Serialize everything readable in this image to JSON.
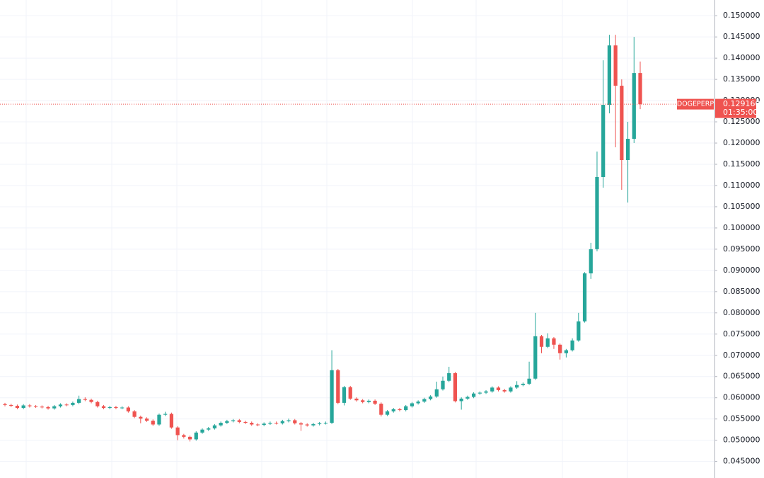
{
  "chart_data": {
    "type": "candlestick",
    "up_color": "#26a69a",
    "down_color": "#ef5350",
    "grid": true,
    "ylim": [
      0.0411,
      0.1537
    ],
    "yticks": [
      {
        "value": 0.045,
        "label": "0.045000"
      },
      {
        "value": 0.05,
        "label": "0.050000"
      },
      {
        "value": 0.055,
        "label": "0.055000"
      },
      {
        "value": 0.06,
        "label": "0.060000"
      },
      {
        "value": 0.065,
        "label": "0.065000"
      },
      {
        "value": 0.07,
        "label": "0.070000"
      },
      {
        "value": 0.075,
        "label": "0.075000"
      },
      {
        "value": 0.08,
        "label": "0.080000"
      },
      {
        "value": 0.085,
        "label": "0.085000"
      },
      {
        "value": 0.09,
        "label": "0.090000"
      },
      {
        "value": 0.095,
        "label": "0.095000"
      },
      {
        "value": 0.1,
        "label": "0.100000"
      },
      {
        "value": 0.105,
        "label": "0.105000"
      },
      {
        "value": 0.11,
        "label": "0.110000"
      },
      {
        "value": 0.115,
        "label": "0.115000"
      },
      {
        "value": 0.12,
        "label": "0.120000"
      },
      {
        "value": 0.125,
        "label": "0.125000"
      },
      {
        "value": 0.13,
        "label": "0.130000"
      },
      {
        "value": 0.135,
        "label": "0.135000"
      },
      {
        "value": 0.14,
        "label": "0.140000"
      },
      {
        "value": 0.145,
        "label": "0.145000"
      },
      {
        "value": 0.15,
        "label": "0.150000"
      }
    ],
    "last_price": {
      "name": "DOGEPERP",
      "value": 0.12916,
      "label": "0.129160",
      "countdown": "01:35:00"
    },
    "open": [
      0.0585,
      0.0583,
      0.0581,
      0.0576,
      0.0582,
      0.058,
      0.0579,
      0.0578,
      0.0575,
      0.058,
      0.0584,
      0.0583,
      0.0588,
      0.0597,
      0.0595,
      0.059,
      0.058,
      0.0576,
      0.0578,
      0.0576,
      0.0577,
      0.0568,
      0.0555,
      0.0551,
      0.0546,
      0.0537,
      0.056,
      0.0562,
      0.053,
      0.0512,
      0.0508,
      0.0502,
      0.0518,
      0.0525,
      0.0528,
      0.0535,
      0.0541,
      0.0545,
      0.0547,
      0.0543,
      0.0541,
      0.0537,
      0.0536,
      0.0539,
      0.0541,
      0.054,
      0.0545,
      0.0547,
      0.054,
      0.0537,
      0.0535,
      0.0538,
      0.054,
      0.0541,
      0.0665,
      0.0588,
      0.0625,
      0.0598,
      0.0594,
      0.059,
      0.0593,
      0.0586,
      0.056,
      0.0568,
      0.0573,
      0.0571,
      0.058,
      0.0587,
      0.0591,
      0.0597,
      0.0603,
      0.062,
      0.064,
      0.0658,
      0.0592,
      0.0598,
      0.0602,
      0.061,
      0.0612,
      0.0615,
      0.0624,
      0.0618,
      0.0615,
      0.0624,
      0.063,
      0.0633,
      0.0645,
      0.0745,
      0.072,
      0.074,
      0.0725,
      0.0705,
      0.0712,
      0.0735,
      0.078,
      0.0893,
      0.095,
      0.112,
      0.129,
      0.143,
      0.1335,
      0.116,
      0.121,
      0.1365
    ],
    "high": [
      0.0588,
      0.0586,
      0.0584,
      0.0585,
      0.0585,
      0.0583,
      0.0582,
      0.0581,
      0.0583,
      0.0587,
      0.0587,
      0.0591,
      0.0605,
      0.0601,
      0.0598,
      0.0593,
      0.0583,
      0.0581,
      0.0581,
      0.058,
      0.058,
      0.0571,
      0.0558,
      0.0554,
      0.0549,
      0.0563,
      0.0567,
      0.0565,
      0.0533,
      0.0515,
      0.0511,
      0.0521,
      0.0528,
      0.0531,
      0.0538,
      0.0544,
      0.0548,
      0.055,
      0.055,
      0.0546,
      0.0544,
      0.054,
      0.0542,
      0.0544,
      0.0544,
      0.0548,
      0.0551,
      0.055,
      0.0543,
      0.054,
      0.0541,
      0.0543,
      0.0544,
      0.0712,
      0.0668,
      0.0628,
      0.0628,
      0.0601,
      0.0597,
      0.0596,
      0.0596,
      0.0589,
      0.0571,
      0.0576,
      0.0576,
      0.0583,
      0.059,
      0.0594,
      0.06,
      0.0606,
      0.0638,
      0.065,
      0.0673,
      0.0661,
      0.0601,
      0.0605,
      0.0613,
      0.0615,
      0.0618,
      0.0627,
      0.0627,
      0.0621,
      0.0627,
      0.0639,
      0.0636,
      0.0685,
      0.08,
      0.0748,
      0.0752,
      0.0743,
      0.0728,
      0.0715,
      0.074,
      0.08,
      0.0896,
      0.0965,
      0.118,
      0.1395,
      0.1455,
      0.1455,
      0.135,
      0.125,
      0.145,
      0.1392
    ],
    "low": [
      0.058,
      0.0578,
      0.0573,
      0.0573,
      0.0577,
      0.0576,
      0.0575,
      0.0572,
      0.0572,
      0.0577,
      0.058,
      0.058,
      0.0585,
      0.0592,
      0.0587,
      0.0577,
      0.0573,
      0.0573,
      0.0573,
      0.0573,
      0.0565,
      0.0552,
      0.054,
      0.0543,
      0.0534,
      0.0534,
      0.0557,
      0.0527,
      0.05,
      0.0504,
      0.0497,
      0.0499,
      0.0515,
      0.0522,
      0.0525,
      0.0532,
      0.0538,
      0.0542,
      0.054,
      0.0538,
      0.0534,
      0.0533,
      0.0533,
      0.0536,
      0.0537,
      0.0537,
      0.0542,
      0.0537,
      0.0522,
      0.0532,
      0.0532,
      0.0535,
      0.0537,
      0.0538,
      0.0585,
      0.0582,
      0.0595,
      0.0591,
      0.0587,
      0.0587,
      0.0583,
      0.0556,
      0.0557,
      0.0565,
      0.0568,
      0.0568,
      0.0577,
      0.0584,
      0.0588,
      0.0594,
      0.06,
      0.0617,
      0.0637,
      0.0589,
      0.0572,
      0.0595,
      0.0599,
      0.0607,
      0.0609,
      0.0612,
      0.0615,
      0.0612,
      0.0612,
      0.0621,
      0.0627,
      0.063,
      0.0642,
      0.0705,
      0.0717,
      0.0715,
      0.069,
      0.0695,
      0.0709,
      0.0732,
      0.0777,
      0.088,
      0.0945,
      0.1095,
      0.127,
      0.119,
      0.109,
      0.106,
      0.12,
      0.128
    ],
    "close": [
      0.0583,
      0.0581,
      0.0576,
      0.0582,
      0.058,
      0.0579,
      0.0578,
      0.0575,
      0.058,
      0.0584,
      0.0583,
      0.0588,
      0.0597,
      0.0595,
      0.059,
      0.058,
      0.0576,
      0.0578,
      0.0576,
      0.0577,
      0.0568,
      0.0555,
      0.0551,
      0.0546,
      0.0537,
      0.056,
      0.0562,
      0.053,
      0.0512,
      0.0508,
      0.0502,
      0.0518,
      0.0525,
      0.0528,
      0.0535,
      0.0541,
      0.0545,
      0.0547,
      0.0543,
      0.0541,
      0.0537,
      0.0536,
      0.0539,
      0.0541,
      0.054,
      0.0545,
      0.0547,
      0.054,
      0.0537,
      0.0535,
      0.0538,
      0.054,
      0.0541,
      0.0665,
      0.0588,
      0.0625,
      0.0598,
      0.0594,
      0.059,
      0.0593,
      0.0586,
      0.056,
      0.0568,
      0.0573,
      0.0571,
      0.058,
      0.0587,
      0.0591,
      0.0597,
      0.0603,
      0.062,
      0.064,
      0.0658,
      0.0592,
      0.0598,
      0.0602,
      0.061,
      0.0612,
      0.0615,
      0.0624,
      0.0618,
      0.0615,
      0.0624,
      0.063,
      0.0633,
      0.0645,
      0.0745,
      0.072,
      0.074,
      0.0725,
      0.0705,
      0.0712,
      0.0735,
      0.078,
      0.0893,
      0.095,
      0.112,
      0.129,
      0.143,
      0.1335,
      0.116,
      0.121,
      0.1365,
      0.12916
    ]
  }
}
